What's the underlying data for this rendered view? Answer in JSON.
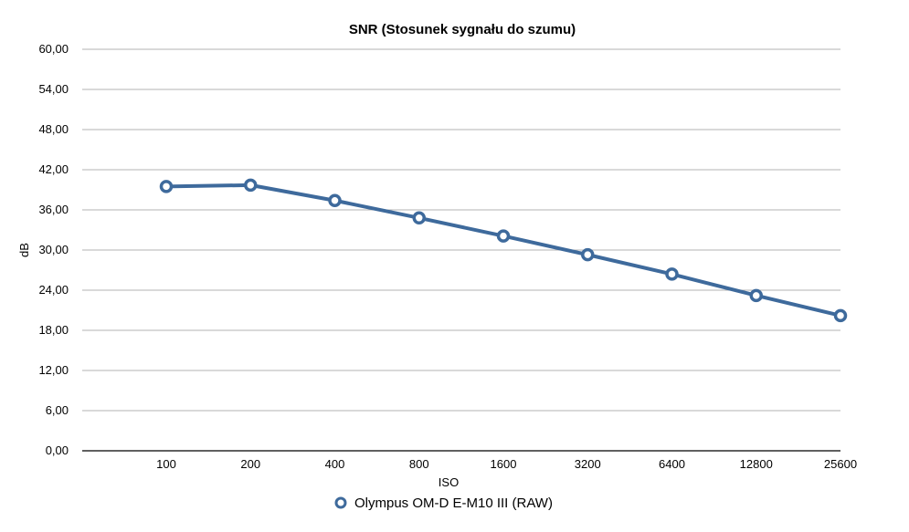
{
  "chart_data": {
    "type": "line",
    "title": "SNR (Stosunek sygnału do szumu)",
    "xlabel": "ISO",
    "ylabel": "dB",
    "categories": [
      "100",
      "200",
      "400",
      "800",
      "1600",
      "3200",
      "6400",
      "12800",
      "25600"
    ],
    "y_ticks": [
      "0,00",
      "6,00",
      "12,00",
      "18,00",
      "24,00",
      "30,00",
      "36,00",
      "42,00",
      "48,00",
      "54,00",
      "60,00"
    ],
    "ylim": [
      0,
      60
    ],
    "grid": true,
    "legend_position": "bottom",
    "series": [
      {
        "name": "Olympus OM-D E-M10 III (RAW)",
        "color": "#3e6a9c",
        "values": [
          39.5,
          39.7,
          37.4,
          34.8,
          32.1,
          29.3,
          26.4,
          23.2,
          20.2
        ]
      }
    ]
  }
}
